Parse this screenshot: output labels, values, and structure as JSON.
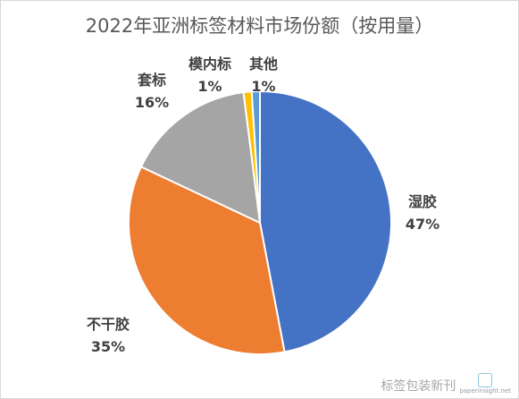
{
  "chart_data": {
    "type": "pie",
    "title": "2022年亚洲标签材料市场份额（按用量）",
    "slices": [
      {
        "label": "湿胶",
        "value": 47,
        "display": "47%",
        "color": "#4472c4"
      },
      {
        "label": "不干胶",
        "value": 35,
        "display": "35%",
        "color": "#ed7d31"
      },
      {
        "label": "套标",
        "value": 16,
        "display": "16%",
        "color": "#a5a5a5"
      },
      {
        "label": "模内标",
        "value": 1,
        "display": "1%",
        "color": "#ffc000"
      },
      {
        "label": "其他",
        "value": 1,
        "display": "1%",
        "color": "#5b9bd5"
      }
    ],
    "legend": "none"
  },
  "watermark": {
    "text": "标签包装新刊",
    "site": "paperinsight.net"
  }
}
